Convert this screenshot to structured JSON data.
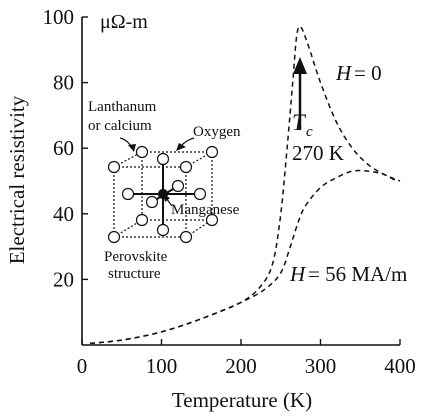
{
  "chart_data": {
    "type": "line",
    "xlabel": "Temperature (K)",
    "ylabel": "Electrical resistivity",
    "unit_label": "μΩ-m",
    "xlim": [
      0,
      400
    ],
    "ylim": [
      0,
      100
    ],
    "x_ticks": [
      0,
      100,
      200,
      300,
      400
    ],
    "y_ticks": [
      20,
      40,
      60,
      80,
      100
    ],
    "grid": false,
    "series": [
      {
        "name": "H = 0",
        "style": "dashed",
        "x": [
          10,
          50,
          100,
          150,
          200,
          225,
          240,
          250,
          258,
          265,
          270,
          275,
          285,
          300,
          320,
          340,
          360,
          380,
          400
        ],
        "y": [
          0.5,
          1.5,
          4,
          8,
          13,
          18,
          25,
          40,
          60,
          80,
          94,
          97,
          91,
          80,
          68,
          60,
          55,
          52,
          50
        ]
      },
      {
        "name": "H = 56 MA/m",
        "style": "dashed",
        "x": [
          10,
          50,
          100,
          150,
          200,
          230,
          250,
          262,
          270,
          280,
          300,
          320,
          340,
          360,
          380,
          395
        ],
        "y": [
          0.5,
          1.5,
          4,
          8,
          13,
          17,
          22,
          30,
          36,
          42,
          48,
          51,
          53,
          53,
          52,
          50
        ]
      }
    ],
    "annotations": {
      "h0_prefix": "H",
      "h0_value": "= 0",
      "h56_prefix": "H",
      "h56_value": "= 56 MA/m",
      "tc_symbol": "T",
      "tc_sub": "c",
      "tc_value": "270 K",
      "inset_lanthanum": "Lanthanum",
      "inset_calcium": "or calcium",
      "inset_oxygen": "Oxygen",
      "inset_manganese": "Manganese",
      "inset_perovskite": "Perovskite",
      "inset_structure": "structure"
    }
  }
}
